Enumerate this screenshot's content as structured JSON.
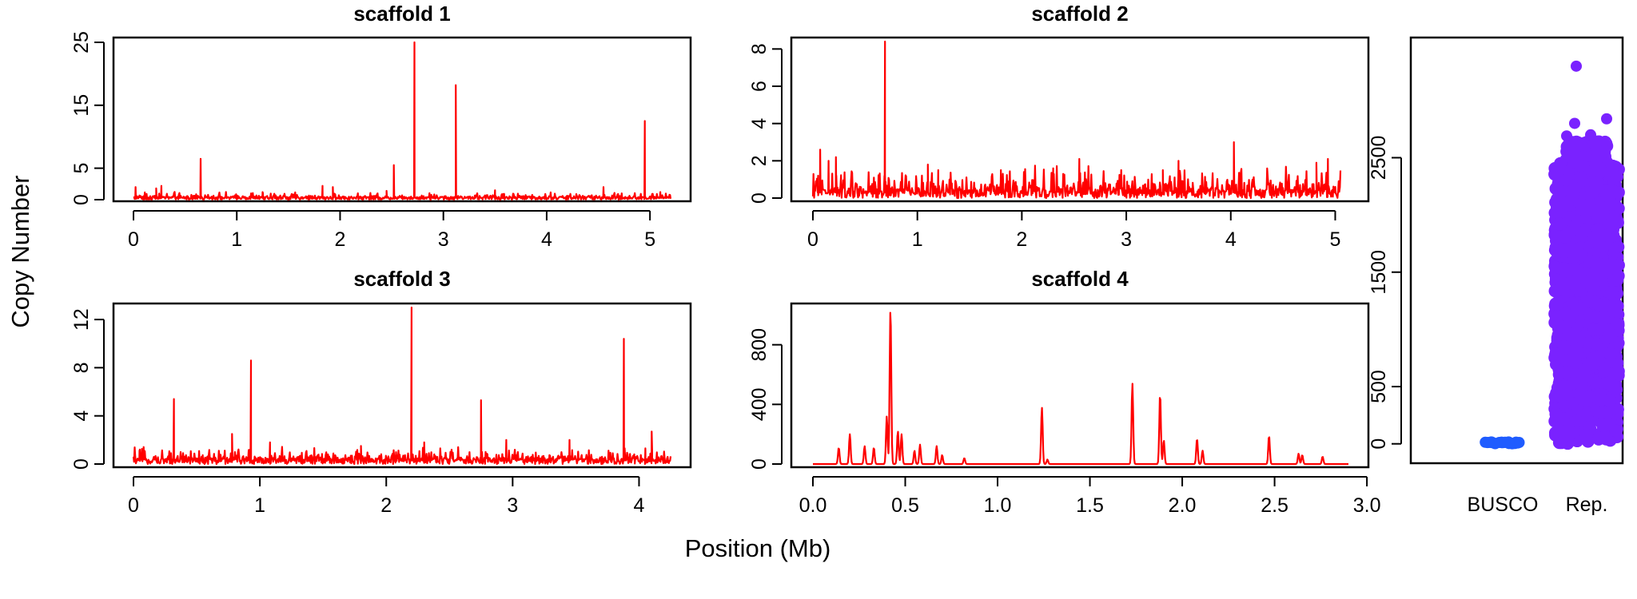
{
  "figure": {
    "ylabel": "Copy Number",
    "xlabel": "Position (Mb)"
  },
  "colors": {
    "line": "#ff0000",
    "busco": "#1f5cff",
    "repeats": "#7a22ff"
  },
  "chart_data": [
    {
      "type": "line",
      "title": "scaffold 1",
      "xlim": [
        0,
        5.2
      ],
      "ylim": [
        0,
        25
      ],
      "xticks": [
        0,
        1,
        2,
        3,
        4,
        5
      ],
      "xtick_labels": [
        "0",
        "1",
        "2",
        "3",
        "4",
        "5"
      ],
      "yticks": [
        0,
        5,
        15,
        25
      ],
      "ytick_labels": [
        "0",
        "5",
        "15",
        "25"
      ],
      "baseline": 0.3,
      "noise": 0.8,
      "peaks": [
        [
          0.02,
          2
        ],
        [
          0.22,
          1.8
        ],
        [
          0.27,
          2.2
        ],
        [
          0.65,
          6.5
        ],
        [
          1.25,
          1.2
        ],
        [
          1.83,
          2.2
        ],
        [
          1.93,
          2
        ],
        [
          2.45,
          1.4
        ],
        [
          2.52,
          5.5
        ],
        [
          2.72,
          25
        ],
        [
          3.12,
          18.2
        ],
        [
          3.5,
          1.5
        ],
        [
          4.55,
          2
        ],
        [
          4.95,
          12.5
        ],
        [
          5.1,
          1.2
        ]
      ]
    },
    {
      "type": "line",
      "title": "scaffold 2",
      "xlim": [
        0,
        5.05
      ],
      "ylim": [
        0,
        8.4
      ],
      "xticks": [
        0,
        1,
        2,
        3,
        4,
        5
      ],
      "xtick_labels": [
        "0",
        "1",
        "2",
        "3",
        "4",
        "5"
      ],
      "yticks": [
        0,
        2,
        4,
        6,
        8
      ],
      "ytick_labels": [
        "0",
        "2",
        "4",
        "6",
        "8"
      ],
      "baseline": 0.3,
      "noise": 1.3,
      "peaks": [
        [
          0.05,
          1.2
        ],
        [
          0.07,
          2.6
        ],
        [
          0.15,
          2
        ],
        [
          0.22,
          2.2
        ],
        [
          0.69,
          8.4
        ],
        [
          1.1,
          1.8
        ],
        [
          1.2,
          1.5
        ],
        [
          1.8,
          1.5
        ],
        [
          2.3,
          1.6
        ],
        [
          2.55,
          2.1
        ],
        [
          2.98,
          1.2
        ],
        [
          3.35,
          1.5
        ],
        [
          3.5,
          2
        ],
        [
          4.03,
          3
        ],
        [
          4.82,
          1.9
        ],
        [
          4.93,
          2.1
        ],
        [
          5.0,
          0.6
        ]
      ]
    },
    {
      "type": "line",
      "title": "scaffold 3",
      "xlim": [
        0,
        4.25
      ],
      "ylim": [
        0,
        13
      ],
      "xticks": [
        0,
        1,
        2,
        3,
        4
      ],
      "xtick_labels": [
        "0",
        "1",
        "2",
        "3",
        "4"
      ],
      "yticks": [
        0,
        4,
        8,
        12
      ],
      "ytick_labels": [
        "0",
        "4",
        "8",
        "12"
      ],
      "baseline": 0.3,
      "noise": 1,
      "peaks": [
        [
          0.05,
          1.2
        ],
        [
          0.32,
          5.4
        ],
        [
          0.78,
          2.5
        ],
        [
          0.93,
          8.6
        ],
        [
          1.08,
          1.8
        ],
        [
          1.8,
          1.5
        ],
        [
          2.2,
          13
        ],
        [
          2.3,
          1.8
        ],
        [
          2.75,
          5.3
        ],
        [
          2.95,
          2
        ],
        [
          3.45,
          2
        ],
        [
          3.88,
          10.4
        ],
        [
          4.05,
          1.3
        ],
        [
          4.1,
          2.7
        ]
      ]
    },
    {
      "type": "line",
      "title": "scaffold 4",
      "xlim": [
        0,
        2.9
      ],
      "ylim": [
        0,
        1050
      ],
      "xticks": [
        0,
        0.5,
        1,
        1.5,
        2,
        2.5,
        3
      ],
      "xtick_labels": [
        "0.0",
        "0.5",
        "1.0",
        "1.5",
        "2.0",
        "2.5",
        "3.0"
      ],
      "yticks": [
        0,
        400,
        800
      ],
      "ytick_labels": [
        "0",
        "400",
        "800"
      ],
      "baseline": 0,
      "noise": 0,
      "peaks": [
        [
          0.14,
          110
        ],
        [
          0.2,
          200
        ],
        [
          0.28,
          120
        ],
        [
          0.33,
          110
        ],
        [
          0.4,
          320
        ],
        [
          0.42,
          1050
        ],
        [
          0.46,
          220
        ],
        [
          0.48,
          200
        ],
        [
          0.55,
          90
        ],
        [
          0.58,
          130
        ],
        [
          0.67,
          120
        ],
        [
          0.7,
          60
        ],
        [
          0.82,
          40
        ],
        [
          1.24,
          380
        ],
        [
          1.27,
          30
        ],
        [
          1.73,
          540
        ],
        [
          1.88,
          470
        ],
        [
          1.9,
          160
        ],
        [
          2.08,
          170
        ],
        [
          2.11,
          90
        ],
        [
          2.47,
          190
        ],
        [
          2.63,
          70
        ],
        [
          2.65,
          60
        ],
        [
          2.76,
          50
        ]
      ]
    },
    {
      "type": "scatter",
      "title": "",
      "ylim": [
        -30,
        3550
      ],
      "yticks": [
        0,
        500,
        1500,
        2500
      ],
      "ytick_labels": [
        "0",
        "500",
        "1500",
        "2500"
      ],
      "categories": [
        "BUSCO",
        "Rep."
      ],
      "groups": [
        {
          "name": "BUSCO",
          "values_range": [
            0,
            20
          ],
          "color_key": "busco"
        },
        {
          "name": "Rep.",
          "values_range": [
            0,
            2640
          ],
          "outliers": [
            3300,
            2840,
            2800,
            2700,
            2690
          ],
          "color_key": "repeats"
        }
      ]
    }
  ]
}
